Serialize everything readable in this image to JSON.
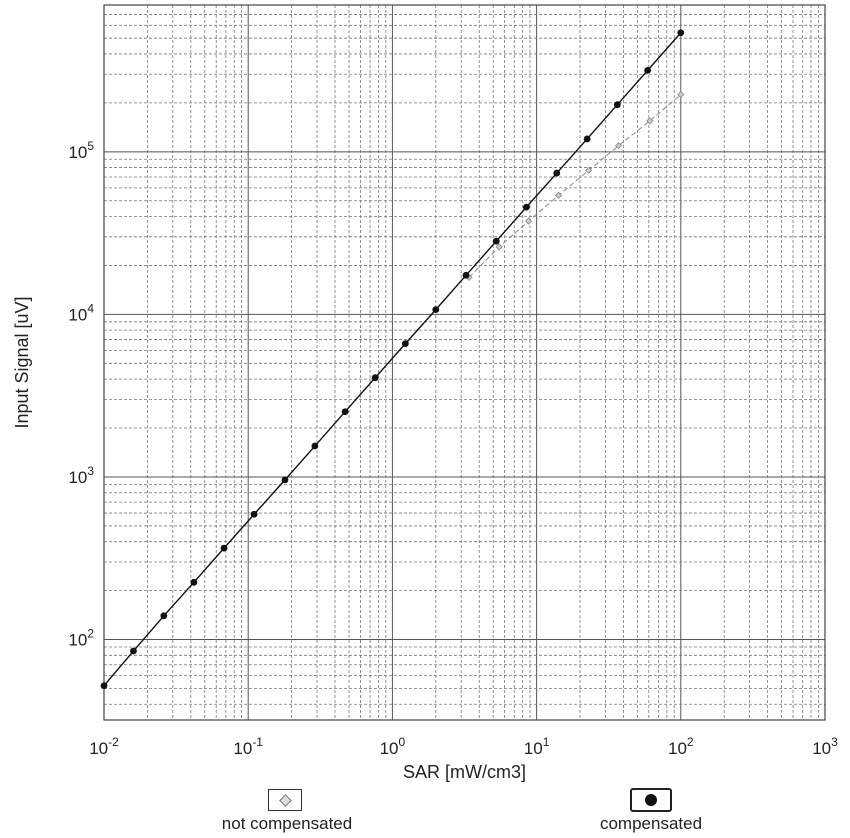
{
  "chart_data": {
    "type": "scatter",
    "xlabel": "SAR [mW/cm3]",
    "ylabel": "Input Signal [uV]",
    "x_scale": "log",
    "y_scale": "log",
    "xlim": [
      0.01,
      1000
    ],
    "ylim": [
      32,
      800000
    ],
    "x_ticks": [
      {
        "base": "10",
        "exp": "-2",
        "value": 0.01
      },
      {
        "base": "10",
        "exp": "-1",
        "value": 0.1
      },
      {
        "base": "10",
        "exp": "0",
        "value": 1
      },
      {
        "base": "10",
        "exp": "1",
        "value": 10
      },
      {
        "base": "10",
        "exp": "2",
        "value": 100
      },
      {
        "base": "10",
        "exp": "3",
        "value": 1000
      }
    ],
    "y_ticks": [
      {
        "base": "10",
        "exp": "2",
        "value": 100
      },
      {
        "base": "10",
        "exp": "3",
        "value": 1000
      },
      {
        "base": "10",
        "exp": "4",
        "value": 10000
      },
      {
        "base": "10",
        "exp": "5",
        "value": 100000
      }
    ],
    "grid": true,
    "series": [
      {
        "name": "not compensated",
        "color": "#888888",
        "marker": "diamond",
        "line": "dashed",
        "x": [
          3.4,
          5.5,
          8.8,
          14.2,
          23,
          37,
          61,
          100
        ],
        "y": [
          16900,
          26000,
          37500,
          54000,
          77000,
          109000,
          155000,
          225000
        ]
      },
      {
        "name": "compensated",
        "color": "#111111",
        "marker": "circle",
        "line": "solid",
        "x": [
          0.01,
          0.016,
          0.026,
          0.042,
          0.068,
          0.11,
          0.18,
          0.29,
          0.47,
          0.76,
          1.23,
          2.0,
          3.24,
          5.25,
          8.5,
          13.8,
          22.4,
          36.3,
          58.9,
          100
        ],
        "y": [
          52,
          85,
          140,
          225,
          365,
          590,
          960,
          1550,
          2520,
          4080,
          6610,
          10700,
          17400,
          28200,
          45700,
          74000,
          120000,
          195000,
          317000,
          540000
        ]
      }
    ],
    "legend_position": "bottom"
  },
  "legend": {
    "not_compensated": "not compensated",
    "compensated": "compensated"
  },
  "icons": {
    "not_compensated": "diamond-marker-icon",
    "compensated": "filled-circle-marker-icon"
  }
}
